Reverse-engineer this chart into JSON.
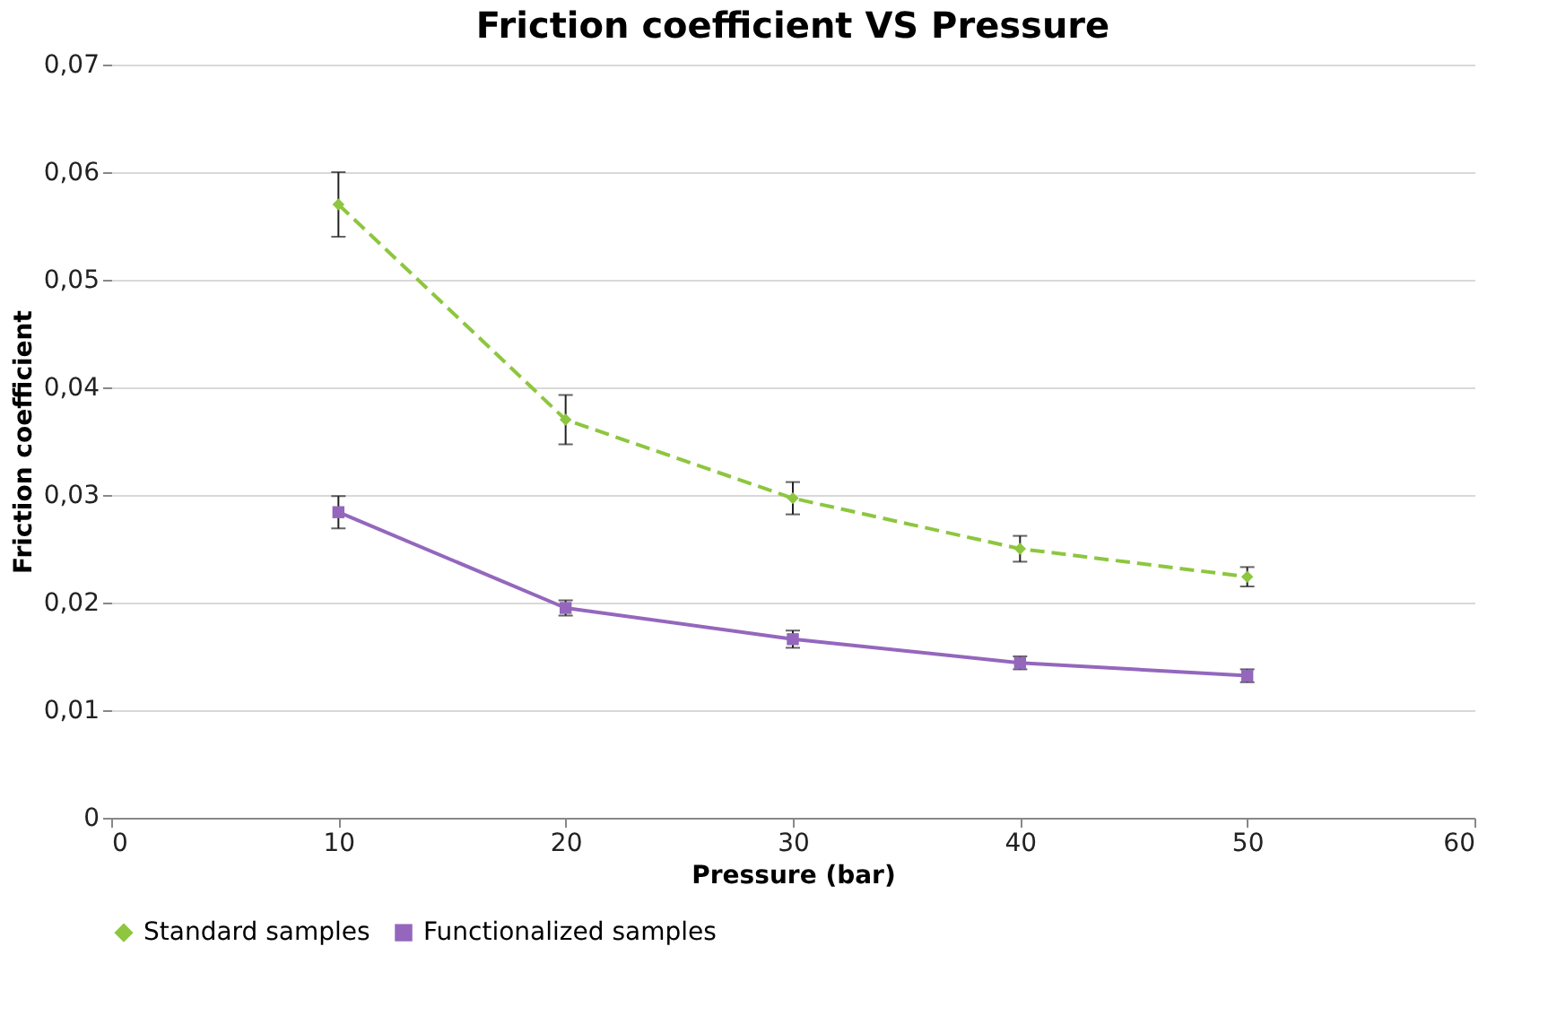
{
  "chart_data": {
    "type": "line",
    "title": "Friction coefficient VS Pressure",
    "xlabel": "Pressure (bar)",
    "ylabel": "Friction coefficient",
    "x": [
      10,
      20,
      30,
      40,
      50
    ],
    "series": [
      {
        "name": "Standard samples",
        "color": "#8dc63f",
        "values": [
          0.057,
          0.037,
          0.0297,
          0.025,
          0.0224
        ],
        "errors": [
          0.003,
          0.0023,
          0.0015,
          0.0012,
          0.0009
        ],
        "marker": "diamond",
        "line_style": "dashed"
      },
      {
        "name": "Functionalized samples",
        "color": "#9467bd",
        "values": [
          0.0284,
          0.0195,
          0.0166,
          0.0144,
          0.0132
        ],
        "errors": [
          0.0015,
          0.0007,
          0.0008,
          0.0006,
          0.0006
        ],
        "marker": "square",
        "line_style": "solid"
      }
    ],
    "xlim": [
      0,
      60
    ],
    "xticks": [
      0,
      10,
      20,
      30,
      40,
      50,
      60
    ],
    "ylim": [
      0,
      0.07
    ],
    "yticks": [
      0,
      {
        "value": 0.01,
        "label": "0,01"
      },
      {
        "value": 0.02,
        "label": "0,02"
      },
      {
        "value": 0.03,
        "label": "0,03"
      },
      {
        "value": 0.04,
        "label": "0,04"
      },
      {
        "value": 0.05,
        "label": "0,05"
      },
      {
        "value": 0.06,
        "label": "0,06"
      },
      {
        "value": 0.07,
        "label": "0,07"
      }
    ],
    "grid": "y",
    "legend": "bottom"
  }
}
